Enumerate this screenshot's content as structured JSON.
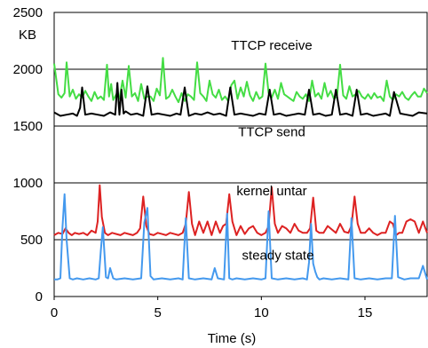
{
  "chart_data": {
    "type": "line",
    "title": "",
    "xlabel": "Time (s)",
    "ylabel": "KB",
    "xlim": [
      0,
      18
    ],
    "ylim": [
      0,
      2500
    ],
    "grid": "horizontal",
    "legend": "none",
    "xticks": [
      {
        "value": 0,
        "label": "0"
      },
      {
        "value": 5,
        "label": "5"
      },
      {
        "value": 10,
        "label": "10"
      },
      {
        "value": 15,
        "label": "15"
      }
    ],
    "yticks": [
      {
        "value": 0,
        "label": "0"
      },
      {
        "value": 500,
        "label": "500"
      },
      {
        "value": 1000,
        "label": "1000"
      },
      {
        "value": 1500,
        "label": "1500"
      },
      {
        "value": 2000,
        "label": "2000"
      },
      {
        "value": 2500,
        "label": "2500"
      }
    ],
    "series": [
      {
        "name": "TTCP receive",
        "color": "#44dd44",
        "label_at": [
          10.5,
          2170
        ],
        "x": [
          0,
          0.2,
          0.35,
          0.5,
          0.6,
          0.75,
          0.9,
          1.05,
          1.2,
          1.35,
          1.5,
          1.65,
          1.8,
          1.95,
          2.1,
          2.25,
          2.4,
          2.55,
          2.65,
          2.75,
          2.85,
          3.0,
          3.15,
          3.3,
          3.45,
          3.6,
          3.75,
          3.9,
          4.05,
          4.2,
          4.35,
          4.5,
          4.65,
          4.8,
          4.95,
          5.1,
          5.25,
          5.4,
          5.55,
          5.7,
          5.85,
          6.0,
          6.15,
          6.3,
          6.45,
          6.6,
          6.75,
          6.9,
          7.05,
          7.2,
          7.35,
          7.5,
          7.65,
          7.8,
          7.95,
          8.1,
          8.25,
          8.4,
          8.55,
          8.7,
          8.85,
          9.0,
          9.15,
          9.3,
          9.45,
          9.6,
          9.75,
          9.9,
          10.05,
          10.2,
          10.35,
          10.5,
          10.65,
          10.8,
          10.95,
          11.1,
          11.25,
          11.4,
          11.55,
          11.7,
          11.85,
          12.0,
          12.15,
          12.3,
          12.45,
          12.6,
          12.75,
          12.9,
          13.05,
          13.2,
          13.35,
          13.5,
          13.65,
          13.8,
          13.95,
          14.1,
          14.25,
          14.4,
          14.55,
          14.7,
          14.85,
          15.0,
          15.15,
          15.3,
          15.45,
          15.6,
          15.75,
          15.9,
          16.05,
          16.2,
          16.35,
          16.5,
          16.65,
          16.8,
          16.95,
          17.1,
          17.25,
          17.4,
          17.55,
          17.7,
          17.85,
          18.0
        ],
        "values": [
          2050,
          1780,
          1750,
          1790,
          2060,
          1760,
          1820,
          1740,
          1780,
          1750,
          1810,
          1760,
          1720,
          1800,
          1740,
          1760,
          1730,
          2040,
          1760,
          1870,
          1730,
          1780,
          1740,
          1900,
          1750,
          2030,
          1760,
          1790,
          1720,
          1870,
          1740,
          1760,
          1760,
          1720,
          1830,
          1770,
          2100,
          1740,
          1760,
          1820,
          1760,
          1710,
          1790,
          1720,
          1780,
          1760,
          1730,
          2060,
          1790,
          1760,
          1720,
          1900,
          1780,
          1750,
          1820,
          1730,
          1760,
          1720,
          1860,
          1900,
          1740,
          1840,
          1760,
          1890,
          1770,
          1720,
          1800,
          1740,
          1760,
          2050,
          1790,
          1750,
          1820,
          1740,
          1880,
          1780,
          1760,
          1740,
          1720,
          1800,
          1760,
          1740,
          1780,
          1720,
          1900,
          1760,
          1790,
          1740,
          1880,
          1760,
          1810,
          1740,
          1760,
          2040,
          1770,
          1740,
          1850,
          1760,
          1780,
          1810,
          1760,
          1740,
          1780,
          1740,
          1790,
          1750,
          1760,
          1720,
          1900,
          1760,
          1730,
          1780,
          1760,
          1800,
          1750,
          1730,
          1770,
          1800,
          1760,
          1760,
          1830,
          1790
        ]
      },
      {
        "name": "TTCP send",
        "color": "#000000",
        "label_at": [
          10.5,
          1410
        ],
        "x": [
          0,
          0.3,
          0.6,
          0.9,
          1.1,
          1.25,
          1.35,
          1.5,
          1.8,
          2.1,
          2.4,
          2.7,
          2.95,
          3.05,
          3.15,
          3.25,
          3.35,
          3.45,
          3.7,
          4.0,
          4.3,
          4.5,
          4.7,
          5.0,
          5.3,
          5.6,
          5.9,
          6.1,
          6.3,
          6.5,
          6.8,
          7.1,
          7.4,
          7.7,
          8.0,
          8.3,
          8.5,
          8.7,
          9.0,
          9.3,
          9.6,
          9.9,
          10.2,
          10.4,
          10.6,
          10.9,
          11.2,
          11.5,
          11.8,
          12.1,
          12.3,
          12.5,
          12.8,
          13.1,
          13.4,
          13.6,
          13.8,
          14.1,
          14.4,
          14.6,
          14.8,
          15.1,
          15.4,
          15.7,
          16.0,
          16.2,
          16.4,
          16.7,
          17.0,
          17.3,
          17.6,
          18.0
        ],
        "values": [
          1620,
          1590,
          1600,
          1610,
          1590,
          1660,
          1840,
          1600,
          1610,
          1600,
          1590,
          1620,
          1600,
          1880,
          1600,
          1820,
          1610,
          1630,
          1600,
          1610,
          1590,
          1850,
          1600,
          1610,
          1600,
          1590,
          1610,
          1600,
          1840,
          1590,
          1610,
          1600,
          1620,
          1600,
          1610,
          1590,
          1840,
          1600,
          1610,
          1600,
          1590,
          1610,
          1600,
          1820,
          1600,
          1610,
          1590,
          1600,
          1610,
          1600,
          1820,
          1600,
          1610,
          1590,
          1600,
          1820,
          1600,
          1610,
          1590,
          1820,
          1600,
          1610,
          1590,
          1600,
          1610,
          1590,
          1800,
          1610,
          1600,
          1590,
          1620,
          1610
        ]
      },
      {
        "name": "kernel untar",
        "color": "#dd2222",
        "label_at": [
          10.5,
          890
        ],
        "x": [
          0,
          0.2,
          0.4,
          0.55,
          0.7,
          0.85,
          1.0,
          1.2,
          1.4,
          1.6,
          1.8,
          2.0,
          2.1,
          2.2,
          2.3,
          2.45,
          2.6,
          2.8,
          3.0,
          3.2,
          3.4,
          3.6,
          3.8,
          4.0,
          4.15,
          4.3,
          4.45,
          4.6,
          4.8,
          5.0,
          5.2,
          5.4,
          5.6,
          5.8,
          6.0,
          6.2,
          6.35,
          6.5,
          6.65,
          6.8,
          7.0,
          7.2,
          7.4,
          7.6,
          7.8,
          8.0,
          8.15,
          8.3,
          8.45,
          8.6,
          8.8,
          9.0,
          9.2,
          9.4,
          9.6,
          9.8,
          10.0,
          10.2,
          10.35,
          10.5,
          10.65,
          10.8,
          11.0,
          11.2,
          11.4,
          11.6,
          11.8,
          12.0,
          12.2,
          12.35,
          12.5,
          12.65,
          12.8,
          13.0,
          13.2,
          13.4,
          13.6,
          13.8,
          14.0,
          14.2,
          14.35,
          14.5,
          14.65,
          14.8,
          15.0,
          15.2,
          15.4,
          15.6,
          15.8,
          16.0,
          16.2,
          16.35,
          16.5,
          16.65,
          16.8,
          17.0,
          17.2,
          17.4,
          17.6,
          17.8,
          18.0
        ],
        "values": [
          540,
          560,
          550,
          600,
          560,
          540,
          560,
          550,
          560,
          540,
          580,
          560,
          660,
          980,
          700,
          560,
          540,
          560,
          550,
          540,
          560,
          550,
          540,
          560,
          600,
          880,
          620,
          550,
          540,
          560,
          550,
          540,
          560,
          550,
          540,
          560,
          640,
          920,
          640,
          540,
          660,
          560,
          660,
          540,
          660,
          560,
          620,
          640,
          900,
          660,
          540,
          620,
          550,
          600,
          620,
          560,
          540,
          560,
          620,
          960,
          640,
          560,
          620,
          600,
          560,
          640,
          580,
          560,
          560,
          600,
          870,
          580,
          560,
          560,
          620,
          590,
          560,
          640,
          570,
          560,
          620,
          880,
          640,
          560,
          560,
          600,
          560,
          540,
          560,
          560,
          660,
          640,
          540,
          560,
          560,
          660,
          680,
          660,
          560,
          660,
          560
        ]
      },
      {
        "name": "steady state",
        "color": "#4499ee",
        "label_at": [
          10.8,
          325
        ],
        "x": [
          0,
          0.15,
          0.3,
          0.4,
          0.5,
          0.6,
          0.75,
          0.9,
          1.1,
          1.4,
          1.7,
          2.0,
          2.15,
          2.25,
          2.35,
          2.5,
          2.6,
          2.7,
          2.85,
          3.0,
          3.4,
          3.8,
          4.2,
          4.35,
          4.5,
          4.65,
          4.8,
          5.2,
          5.6,
          6.0,
          6.2,
          6.35,
          6.5,
          6.8,
          7.2,
          7.6,
          7.75,
          7.9,
          8.2,
          8.35,
          8.45,
          8.6,
          8.8,
          9.2,
          9.6,
          10.0,
          10.2,
          10.35,
          10.5,
          10.8,
          11.2,
          11.6,
          12.0,
          12.2,
          12.3,
          12.4,
          12.5,
          12.6,
          12.7,
          12.8,
          13.0,
          13.4,
          13.8,
          14.2,
          14.35,
          14.5,
          14.8,
          15.2,
          15.6,
          16.0,
          16.3,
          16.45,
          16.6,
          16.9,
          17.2,
          17.6,
          17.8,
          18.0
        ],
        "values": [
          150,
          150,
          160,
          600,
          900,
          500,
          160,
          150,
          160,
          150,
          160,
          150,
          160,
          400,
          610,
          170,
          160,
          250,
          160,
          150,
          160,
          150,
          160,
          650,
          780,
          180,
          150,
          160,
          150,
          160,
          150,
          690,
          160,
          150,
          160,
          150,
          250,
          160,
          150,
          730,
          160,
          150,
          160,
          150,
          160,
          150,
          160,
          750,
          160,
          150,
          160,
          150,
          160,
          150,
          300,
          640,
          290,
          220,
          170,
          150,
          160,
          150,
          160,
          150,
          690,
          160,
          150,
          160,
          150,
          160,
          160,
          710,
          170,
          150,
          160,
          160,
          270,
          150
        ]
      }
    ]
  }
}
